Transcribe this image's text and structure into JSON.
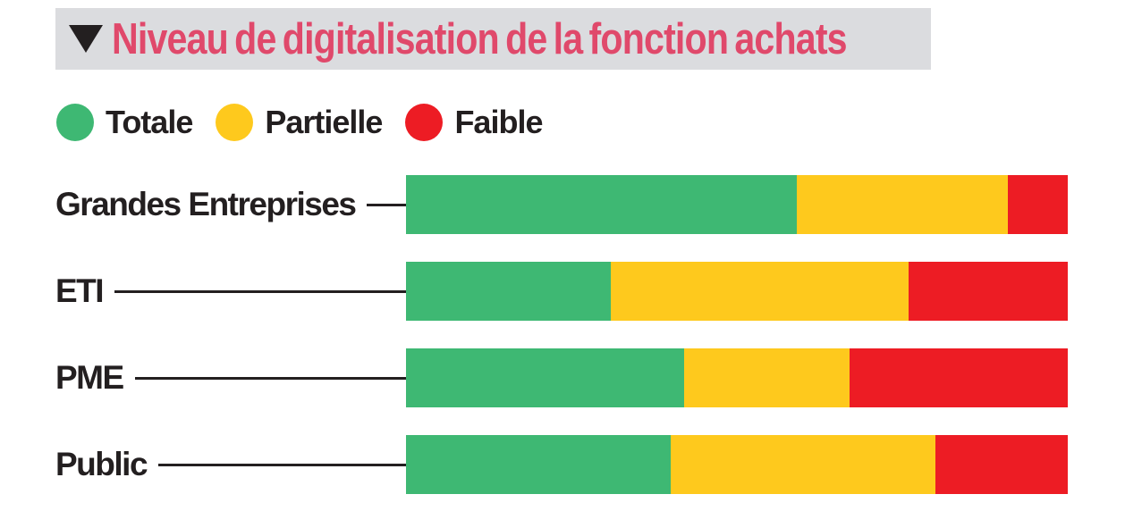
{
  "header": {
    "title": "Niveau de digitalisation de la fonction achats",
    "banner_bg": "#dbdcdf",
    "title_color": "#e0496b",
    "triangle_icon": "triangle-down",
    "triangle_color": "#231f20"
  },
  "style": {
    "text_color": "#231f20",
    "background": "#ffffff",
    "green": "#3eb873",
    "yellow": "#fec91d",
    "red": "#ed1c24"
  },
  "chart_data": {
    "type": "bar",
    "orientation": "horizontal",
    "stacked": true,
    "title": "Niveau de digitalisation de la fonction achats",
    "categories": [
      "Grandes Entreprises",
      "ETI",
      "PME",
      "Public"
    ],
    "series": [
      {
        "name": "Totale",
        "color": "#3eb873",
        "values": [
          59,
          31,
          42,
          40
        ]
      },
      {
        "name": "Partielle",
        "color": "#fec91d",
        "values": [
          32,
          45,
          25,
          40
        ]
      },
      {
        "name": "Faible",
        "color": "#ed1c24",
        "values": [
          9,
          24,
          33,
          20
        ]
      }
    ],
    "unit": "percent",
    "xlim": [
      0,
      100
    ],
    "grid": false,
    "legend_position": "top-left",
    "value_labels_shown": false
  }
}
